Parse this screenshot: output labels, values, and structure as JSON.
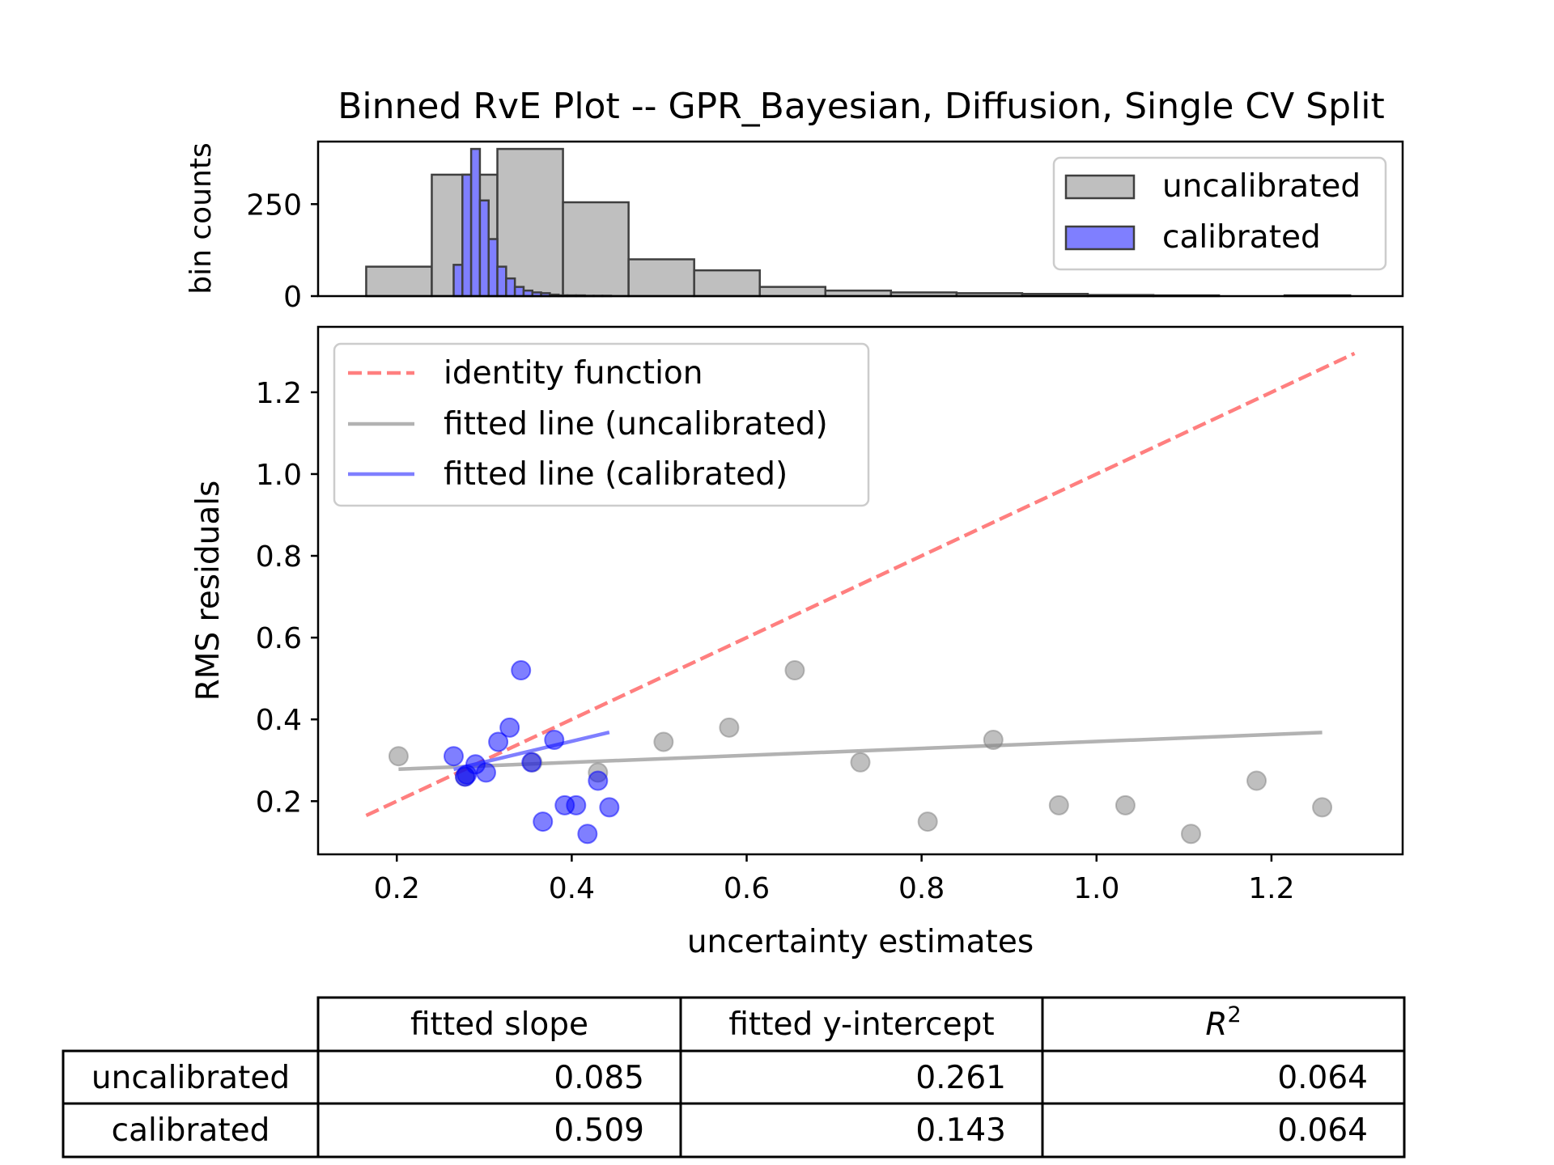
{
  "title": "Binned RvE Plot -- GPR_Bayesian, Diffusion, Single CV Split",
  "colors": {
    "uncalibrated": "#bfbfbf",
    "uncalibrated_fit": "#b2b2b2",
    "calibrated": "#7f7fff",
    "calibrated_point": "#0000ff",
    "identity": "#ff7f7f",
    "edge": "#3f3f3f"
  },
  "histogram": {
    "ylabel": "bin counts",
    "yticks": [
      0,
      250
    ],
    "ylim": [
      0,
      420
    ],
    "xlim": [
      0.11,
      1.35
    ],
    "legend": {
      "position": "upper right",
      "entries": [
        {
          "label": "uncalibrated",
          "color": "#bfbfbf"
        },
        {
          "label": "calibrated",
          "color": "#7f7fff"
        }
      ]
    }
  },
  "scatter": {
    "xlabel": "uncertainty estimates",
    "ylabel": "RMS residuals",
    "xlim": [
      0.11,
      1.35
    ],
    "ylim": [
      0.07,
      1.36
    ],
    "xticks": [
      0.2,
      0.4,
      0.6,
      0.8,
      1.0,
      1.2
    ],
    "xtick_labels": [
      "0.2",
      "0.4",
      "0.6",
      "0.8",
      "1.0",
      "1.2"
    ],
    "yticks": [
      0.2,
      0.4,
      0.6,
      0.8,
      1.0,
      1.2
    ],
    "ytick_labels": [
      "0.2",
      "0.4",
      "0.6",
      "0.8",
      "1.0",
      "1.2"
    ],
    "legend": {
      "position": "upper left",
      "entries": [
        {
          "label": "identity function",
          "style": "dashed",
          "color": "#ff7f7f"
        },
        {
          "label": "fitted line (uncalibrated)",
          "style": "solid",
          "color": "#b2b2b2"
        },
        {
          "label": "fitted line (calibrated)",
          "style": "solid",
          "color": "#7f7fff"
        }
      ]
    }
  },
  "chart_data": [
    {
      "type": "bar",
      "name": "histogram",
      "series": [
        {
          "name": "uncalibrated",
          "bin_edges": [
            0.165,
            0.24,
            0.315,
            0.39,
            0.465,
            0.54,
            0.615,
            0.69,
            0.765,
            0.84,
            0.915,
            0.99,
            1.065,
            1.14,
            1.215,
            1.29
          ],
          "counts": [
            80,
            330,
            400,
            255,
            100,
            70,
            25,
            15,
            10,
            8,
            6,
            3,
            2,
            0,
            2
          ]
        },
        {
          "name": "calibrated",
          "bin_edges": [
            0.265,
            0.275,
            0.285,
            0.295,
            0.305,
            0.315,
            0.325,
            0.335,
            0.345,
            0.355,
            0.365,
            0.375,
            0.385,
            0.395,
            0.405,
            0.415,
            0.425,
            0.435,
            0.445
          ],
          "counts": [
            85,
            330,
            400,
            260,
            155,
            80,
            48,
            25,
            15,
            10,
            8,
            4,
            2,
            2,
            2,
            1,
            1,
            1
          ]
        }
      ]
    },
    {
      "type": "scatter",
      "name": "binned RvE",
      "series": [
        {
          "name": "uncalibrated",
          "x": [
            0.202,
            0.278,
            0.355,
            0.43,
            0.505,
            0.58,
            0.655,
            0.73,
            0.807,
            0.882,
            0.957,
            1.033,
            1.108,
            1.183,
            1.258
          ],
          "y": [
            0.31,
            0.26,
            0.295,
            0.27,
            0.345,
            0.38,
            0.52,
            0.295,
            0.15,
            0.35,
            0.19,
            0.19,
            0.12,
            0.25,
            0.185
          ]
        },
        {
          "name": "calibrated",
          "x": [
            0.265,
            0.278,
            0.28,
            0.29,
            0.302,
            0.316,
            0.329,
            0.342,
            0.354,
            0.367,
            0.38,
            0.392,
            0.405,
            0.418,
            0.43,
            0.443
          ],
          "y": [
            0.31,
            0.26,
            0.265,
            0.29,
            0.27,
            0.345,
            0.38,
            0.52,
            0.295,
            0.15,
            0.35,
            0.19,
            0.19,
            0.12,
            0.25,
            0.185
          ]
        }
      ],
      "lines": [
        {
          "name": "identity function",
          "x": [
            0.165,
            1.295
          ],
          "y": [
            0.165,
            1.295
          ]
        },
        {
          "name": "fitted line (uncalibrated)",
          "slope": 0.085,
          "intercept": 0.261,
          "x": [
            0.202,
            1.258
          ]
        },
        {
          "name": "fitted line (calibrated)",
          "slope": 0.509,
          "intercept": 0.143,
          "x": [
            0.265,
            0.443
          ]
        }
      ]
    },
    {
      "type": "table",
      "name": "fit statistics",
      "columns": [
        "fitted slope",
        "fitted y-intercept",
        "R^2"
      ],
      "rows": [
        {
          "label": "uncalibrated",
          "values": [
            "0.085",
            "0.261",
            "0.064"
          ]
        },
        {
          "label": "calibrated",
          "values": [
            "0.509",
            "0.143",
            "0.064"
          ]
        }
      ]
    }
  ]
}
